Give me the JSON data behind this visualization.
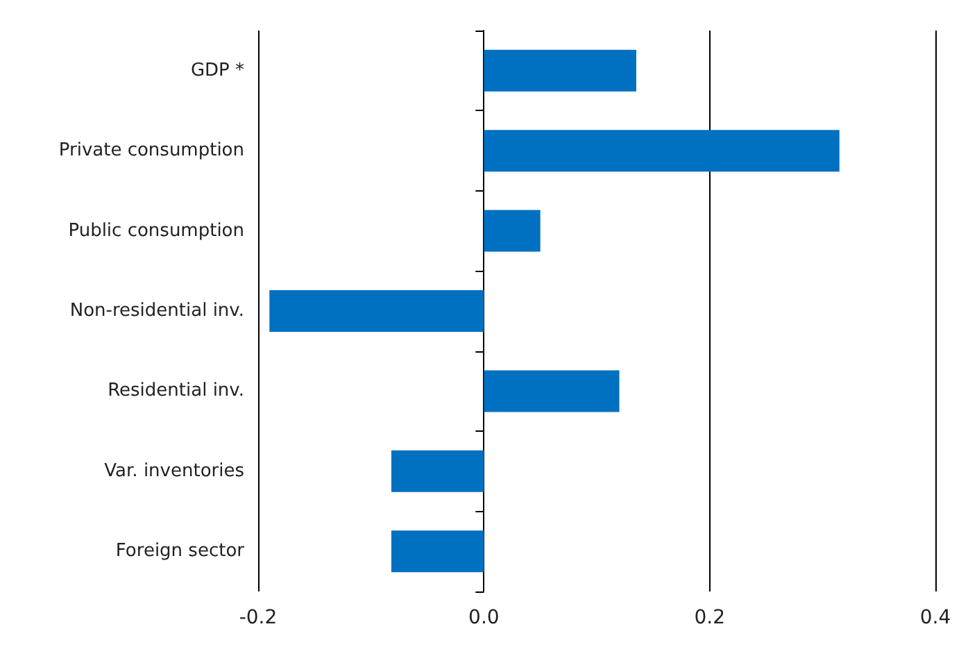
{
  "chart_data": {
    "type": "bar",
    "orientation": "horizontal",
    "categories": [
      "GDP *",
      "Private consumption",
      "Public consumption",
      "Non-residential inv.",
      "Residential inv.",
      "Var. inventories",
      "Foreign sector"
    ],
    "values": [
      0.135,
      0.315,
      0.05,
      -0.19,
      0.12,
      -0.082,
      -0.082
    ],
    "color": "#0070c0",
    "xlim": [
      -0.2,
      0.4
    ],
    "xticks": [
      {
        "value": -0.2,
        "label": "-0.2"
      },
      {
        "value": 0,
        "label": "0.0"
      },
      {
        "value": 0.2,
        "label": "0.2"
      },
      {
        "value": 0.4,
        "label": "0.4"
      }
    ],
    "grid": "x"
  }
}
